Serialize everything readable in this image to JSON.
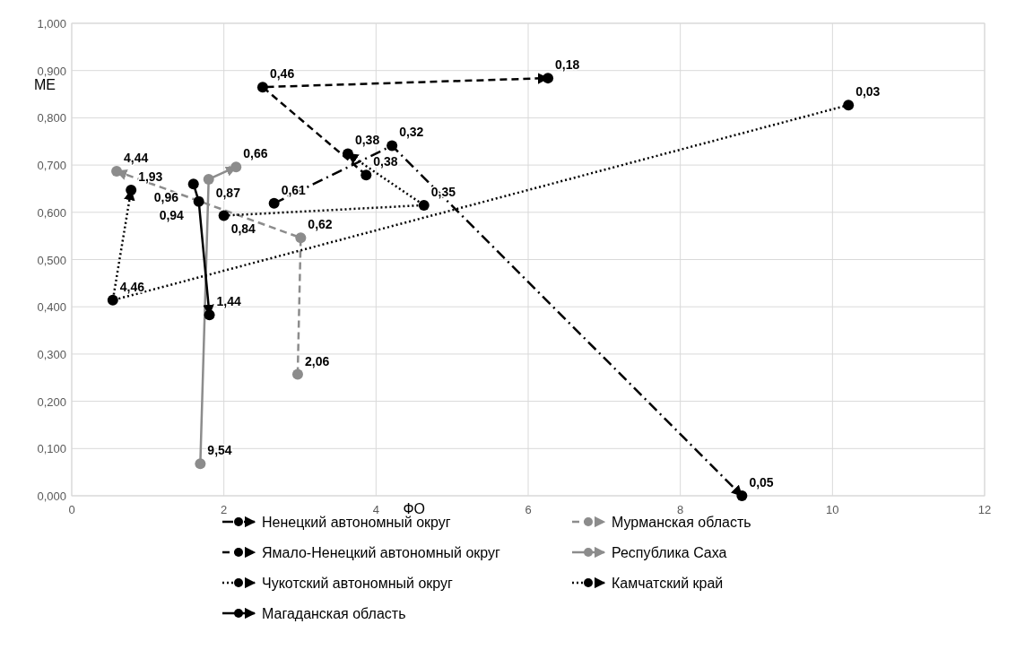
{
  "chart_data": {
    "type": "line",
    "xlabel": "ФО",
    "ylabel": "ME",
    "xlim": [
      0,
      12
    ],
    "xticks": [
      0,
      2,
      4,
      6,
      8,
      10,
      12
    ],
    "ylim": [
      0,
      1
    ],
    "yticks": [
      {
        "value": 0,
        "label": "0,000"
      },
      {
        "value": 0.1,
        "label": "0,100"
      },
      {
        "value": 0.2,
        "label": "0,200"
      },
      {
        "value": 0.3,
        "label": "0,300"
      },
      {
        "value": 0.4,
        "label": "0,400"
      },
      {
        "value": 0.5,
        "label": "0,500"
      },
      {
        "value": 0.6,
        "label": "0,600"
      },
      {
        "value": 0.7,
        "label": "0,700"
      },
      {
        "value": 0.8,
        "label": "0,800"
      },
      {
        "value": 0.9,
        "label": "0,900"
      },
      {
        "value": 1,
        "label": "1,000"
      }
    ],
    "grid": true,
    "legend": "bottom",
    "marker": "circle",
    "series": [
      {
        "name": "Ненецкий автономный округ",
        "color": "#000000",
        "line_style": "dashdot",
        "x": [
          2.66,
          4.21,
          8.81
        ],
        "values": [
          0.619,
          0.741,
          0.0
        ]
      },
      {
        "name": "Мурманская область",
        "color": "#8c8c8c",
        "line_style": "dashed",
        "x": [
          2.97,
          3.01,
          0.59
        ],
        "values": [
          0.257,
          0.546,
          0.687
        ]
      },
      {
        "name": "Ямало-Ненецкий автономный округ",
        "color": "#000000",
        "line_style": "dashed",
        "x": [
          3.87,
          2.51,
          6.26
        ],
        "values": [
          0.679,
          0.865,
          0.884
        ]
      },
      {
        "name": "Республика Саха",
        "color": "#8c8c8c",
        "line_style": "solid",
        "x": [
          1.69,
          1.8,
          2.16
        ],
        "values": [
          0.068,
          0.67,
          0.696
        ]
      },
      {
        "name": "Чукотский автономный округ",
        "color": "#000000",
        "line_style": "dotted",
        "x": [
          10.21,
          0.54,
          0.78
        ],
        "values": [
          0.827,
          0.414,
          0.647
        ]
      },
      {
        "name": "Камчатский край",
        "color": "#000000",
        "line_style": "dotted",
        "x": [
          2.0,
          4.63,
          3.63
        ],
        "values": [
          0.593,
          0.615,
          0.724
        ]
      },
      {
        "name": "Магаданская область",
        "color": "#000000",
        "line_style": "solid",
        "x": [
          1.6,
          1.67,
          1.81
        ],
        "values": [
          0.66,
          0.623,
          0.383
        ]
      }
    ],
    "annotations": [
      {
        "text": "0,61",
        "x": 2.66,
        "y": 0.619
      },
      {
        "text": "0,32",
        "x": 4.21,
        "y": 0.741
      },
      {
        "text": "0,05",
        "x": 8.81,
        "y": 0.0
      },
      {
        "text": "2,06",
        "x": 2.97,
        "y": 0.257
      },
      {
        "text": "0,62",
        "x": 3.01,
        "y": 0.546
      },
      {
        "text": "4,44",
        "x": 0.59,
        "y": 0.687
      },
      {
        "text": "0,38",
        "x": 3.87,
        "y": 0.679
      },
      {
        "text": "0,46",
        "x": 2.51,
        "y": 0.865
      },
      {
        "text": "0,18",
        "x": 6.26,
        "y": 0.884
      },
      {
        "text": "9,54",
        "x": 1.69,
        "y": 0.068
      },
      {
        "text": "0,87",
        "x": 1.8,
        "y": 0.67
      },
      {
        "text": "0,66",
        "x": 2.16,
        "y": 0.696
      },
      {
        "text": "0,03",
        "x": 10.21,
        "y": 0.827
      },
      {
        "text": "4,46",
        "x": 0.54,
        "y": 0.414
      },
      {
        "text": "1,93",
        "x": 0.78,
        "y": 0.647
      },
      {
        "text": "0,84",
        "x": 2.0,
        "y": 0.593
      },
      {
        "text": "0,35",
        "x": 4.63,
        "y": 0.615
      },
      {
        "text": "0,38",
        "x": 3.63,
        "y": 0.724
      },
      {
        "text": "0,96",
        "x": 1.6,
        "y": 0.66
      },
      {
        "text": "0,94",
        "x": 1.67,
        "y": 0.623
      },
      {
        "text": "1,44",
        "x": 1.81,
        "y": 0.383
      }
    ]
  }
}
